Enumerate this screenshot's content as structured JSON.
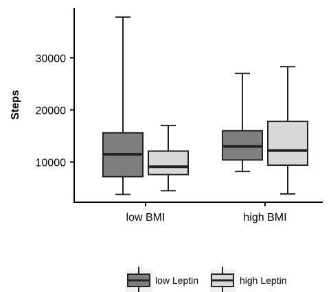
{
  "chart_data": {
    "type": "boxplot",
    "title": "",
    "xlabel": "",
    "ylabel": "Steps",
    "categories": [
      "low BMI",
      "high BMI"
    ],
    "ylim": [
      2300,
      39500
    ],
    "yticks": [
      10000,
      20000,
      30000
    ],
    "yticklabels": [
      "10000",
      "20000",
      "30000"
    ],
    "grid": false,
    "legend_position": "bottom",
    "series": [
      {
        "name": "low Leptin",
        "color": "#7f7f7f",
        "boxes": [
          {
            "category": "low BMI",
            "whisker_low": 3800,
            "q1": 7200,
            "median": 11500,
            "q3": 15600,
            "whisker_high": 37800
          },
          {
            "category": "high BMI",
            "whisker_low": 8200,
            "q1": 10400,
            "median": 13000,
            "q3": 16000,
            "whisker_high": 27000
          }
        ]
      },
      {
        "name": "high Leptin",
        "color": "#d9d9d9",
        "boxes": [
          {
            "category": "low BMI",
            "whisker_low": 4500,
            "q1": 7600,
            "median": 9100,
            "q3": 12100,
            "whisker_high": 17000
          },
          {
            "category": "high BMI",
            "whisker_low": 3900,
            "q1": 9400,
            "median": 12200,
            "q3": 17800,
            "whisker_high": 28300
          }
        ]
      }
    ]
  }
}
